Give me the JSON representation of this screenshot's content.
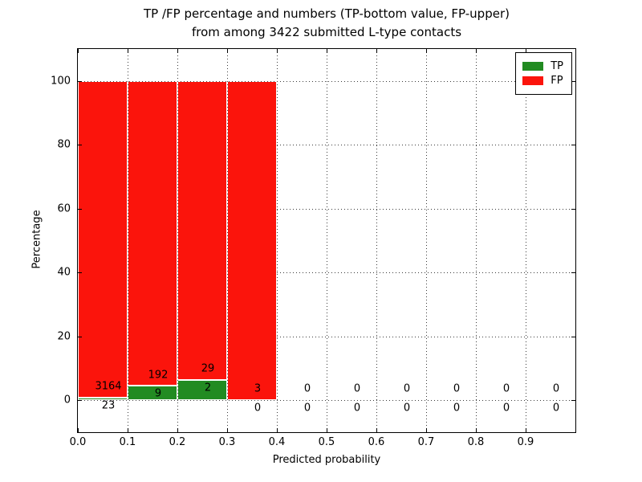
{
  "figure": {
    "title_lines": [
      "TP /FP percentage and numbers (TP-bottom value, FP-upper)",
      "from among 3422 submitted L-type contacts"
    ]
  },
  "chart_data": {
    "type": "bar",
    "stacked": true,
    "title": "TP /FP percentage and numbers (TP-bottom value, FP-upper)\nfrom among 3422 submitted L-type contacts",
    "xlabel": "Predicted probability",
    "ylabel": "Percentage",
    "xlim": [
      0.0,
      1.0
    ],
    "ylim": [
      -10,
      110
    ],
    "xtick_values": [
      0.0,
      0.1,
      0.2,
      0.3,
      0.4,
      0.5,
      0.6,
      0.7,
      0.8,
      0.9
    ],
    "xtick_labels": [
      "0.0",
      "0.1",
      "0.2",
      "0.3",
      "0.4",
      "0.5",
      "0.6",
      "0.7",
      "0.8",
      "0.9"
    ],
    "ytick_values": [
      0,
      20,
      40,
      60,
      80,
      100
    ],
    "ytick_labels": [
      "0",
      "20",
      "40",
      "60",
      "80",
      "100"
    ],
    "grid": "dotted",
    "total_contacts": 3422,
    "bar_value_unit": "percent",
    "legend": {
      "position": "upper right",
      "entries": [
        {
          "label": "TP",
          "color": "#228b22"
        },
        {
          "label": "FP",
          "color": "#fb140c"
        }
      ]
    },
    "bins": [
      {
        "x0": 0.0,
        "x1": 0.1,
        "tp": 23,
        "fp": 3164
      },
      {
        "x0": 0.1,
        "x1": 0.2,
        "tp": 9,
        "fp": 192
      },
      {
        "x0": 0.2,
        "x1": 0.3,
        "tp": 2,
        "fp": 29
      },
      {
        "x0": 0.3,
        "x1": 0.4,
        "tp": 0,
        "fp": 3
      },
      {
        "x0": 0.4,
        "x1": 0.5,
        "tp": 0,
        "fp": 0
      },
      {
        "x0": 0.5,
        "x1": 0.6,
        "tp": 0,
        "fp": 0
      },
      {
        "x0": 0.6,
        "x1": 0.7,
        "tp": 0,
        "fp": 0
      },
      {
        "x0": 0.7,
        "x1": 0.8,
        "tp": 0,
        "fp": 0
      },
      {
        "x0": 0.8,
        "x1": 0.9,
        "tp": 0,
        "fp": 0
      },
      {
        "x0": 0.9,
        "x1": 1.0,
        "tp": 0,
        "fp": 0
      }
    ],
    "colors": {
      "tp": "#228b22",
      "fp": "#fb140c",
      "bar_edge": "#ffffff",
      "grid": "#3a3a3a",
      "axis": "#000000",
      "text": "#000000",
      "background": "#ffffff"
    }
  }
}
